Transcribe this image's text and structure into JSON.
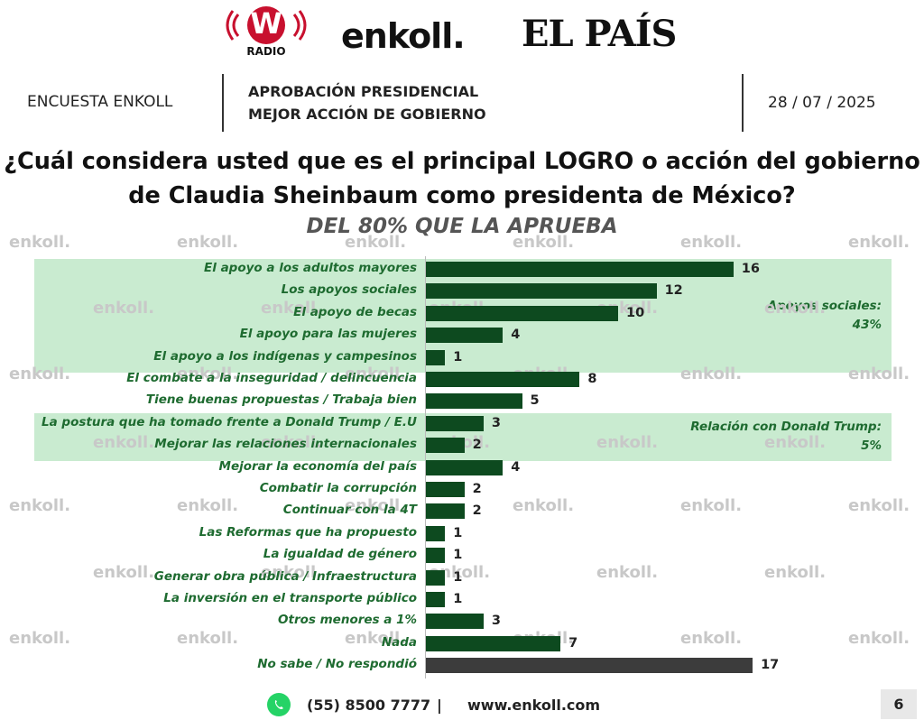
{
  "header": {
    "logo_w_text": "W",
    "logo_w_sub": "RADIO",
    "logo_enkoll": "enkoll.",
    "logo_elpais": "EL PAÍS",
    "survey_label": "ENCUESTA ENKOLL",
    "topic_line1": "APROBACIÓN PRESIDENCIAL",
    "topic_line2": "MEJOR ACCIÓN DE GOBIERNO",
    "date": "28 / 07 / 2025"
  },
  "watermark_text": "enkoll.",
  "colors": {
    "bar_green": "#0d4a1f",
    "bar_gray": "#3c3c3c",
    "band": "#c9ebd0",
    "label_green": "#1e6b30"
  },
  "chart_data": {
    "type": "bar",
    "orientation": "horizontal",
    "title": "¿Cuál considera usted que es el principal LOGRO o acción del gobierno de Claudia Sheinbaum como presidenta de México?",
    "subtitle": "DEL 80% QUE LA APRUEBA",
    "categories": [
      "El apoyo a los adultos mayores",
      "Los apoyos sociales",
      "El apoyo de becas",
      "El apoyo para las mujeres",
      "El apoyo a los indígenas y campesinos",
      "El combate a la inseguridad / delincuencia",
      "Tiene buenas propuestas / Trabaja bien",
      "La postura que ha tomado frente a Donald Trump / E.U",
      "Mejorar las relaciones internacionales",
      "Mejorar la economía del país",
      "Combatir la corrupción",
      "Continuar con la 4T",
      "Las Reformas que ha propuesto",
      "La igualdad de género",
      "Generar obra pública / Infraestructura",
      "La inversión en el transporte público",
      "Otros menores a 1%",
      "Nada",
      "No sabe / No respondió"
    ],
    "values": [
      16,
      12,
      10,
      4,
      1,
      8,
      5,
      3,
      2,
      4,
      2,
      2,
      1,
      1,
      1,
      1,
      3,
      7,
      17
    ],
    "groups": [
      {
        "label_line1": "Apoyos sociales:",
        "label_line2": "43%",
        "start": 0,
        "end": 4
      },
      {
        "label_line1": "Relación con Donald Trump:",
        "label_line2": "5%",
        "start": 7,
        "end": 8
      }
    ]
  },
  "footer": {
    "phone": "(55) 8500 7777",
    "separator": "|",
    "website": "www.enkoll.com",
    "page": "6"
  }
}
